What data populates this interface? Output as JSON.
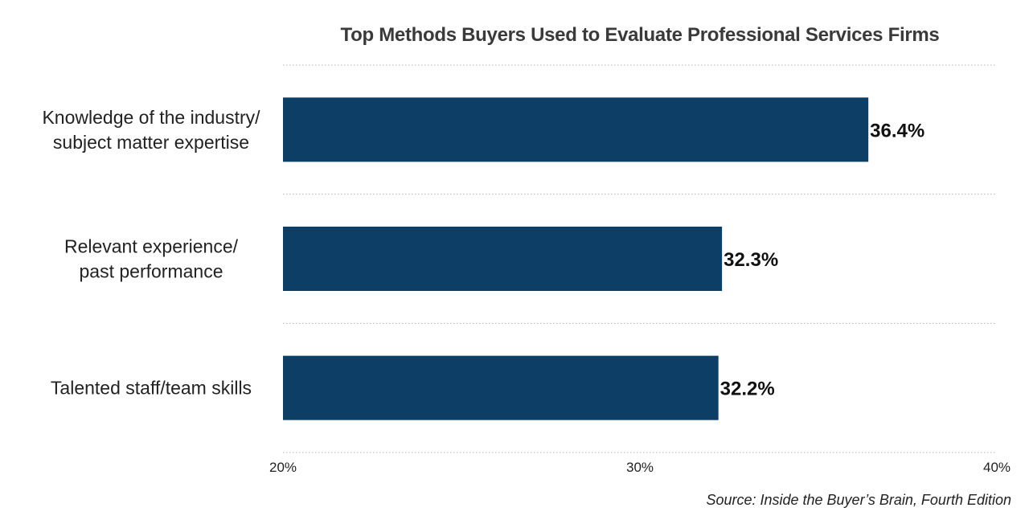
{
  "chart_data": {
    "type": "bar",
    "orientation": "horizontal",
    "title": "Top Methods Buyers Used to Evaluate Professional Services Firms",
    "categories": [
      [
        "Knowledge of the industry/",
        "subject matter expertise"
      ],
      [
        "Relevant experience/",
        "past performance"
      ],
      [
        "Talented staff/team skills"
      ]
    ],
    "values": [
      36.4,
      32.3,
      32.2
    ],
    "value_labels": [
      "36.4%",
      "32.3%",
      "32.2%"
    ],
    "xlim": [
      20,
      40
    ],
    "x_ticks": [
      20,
      30,
      40
    ],
    "x_tick_labels": [
      "20%",
      "30%",
      "40%"
    ],
    "bar_color": "#0d3f66",
    "grid": "dotted horizontal separators",
    "xlabel": "",
    "ylabel": ""
  },
  "source": "Source: Inside the Buyer’s Brain, Fourth Edition"
}
